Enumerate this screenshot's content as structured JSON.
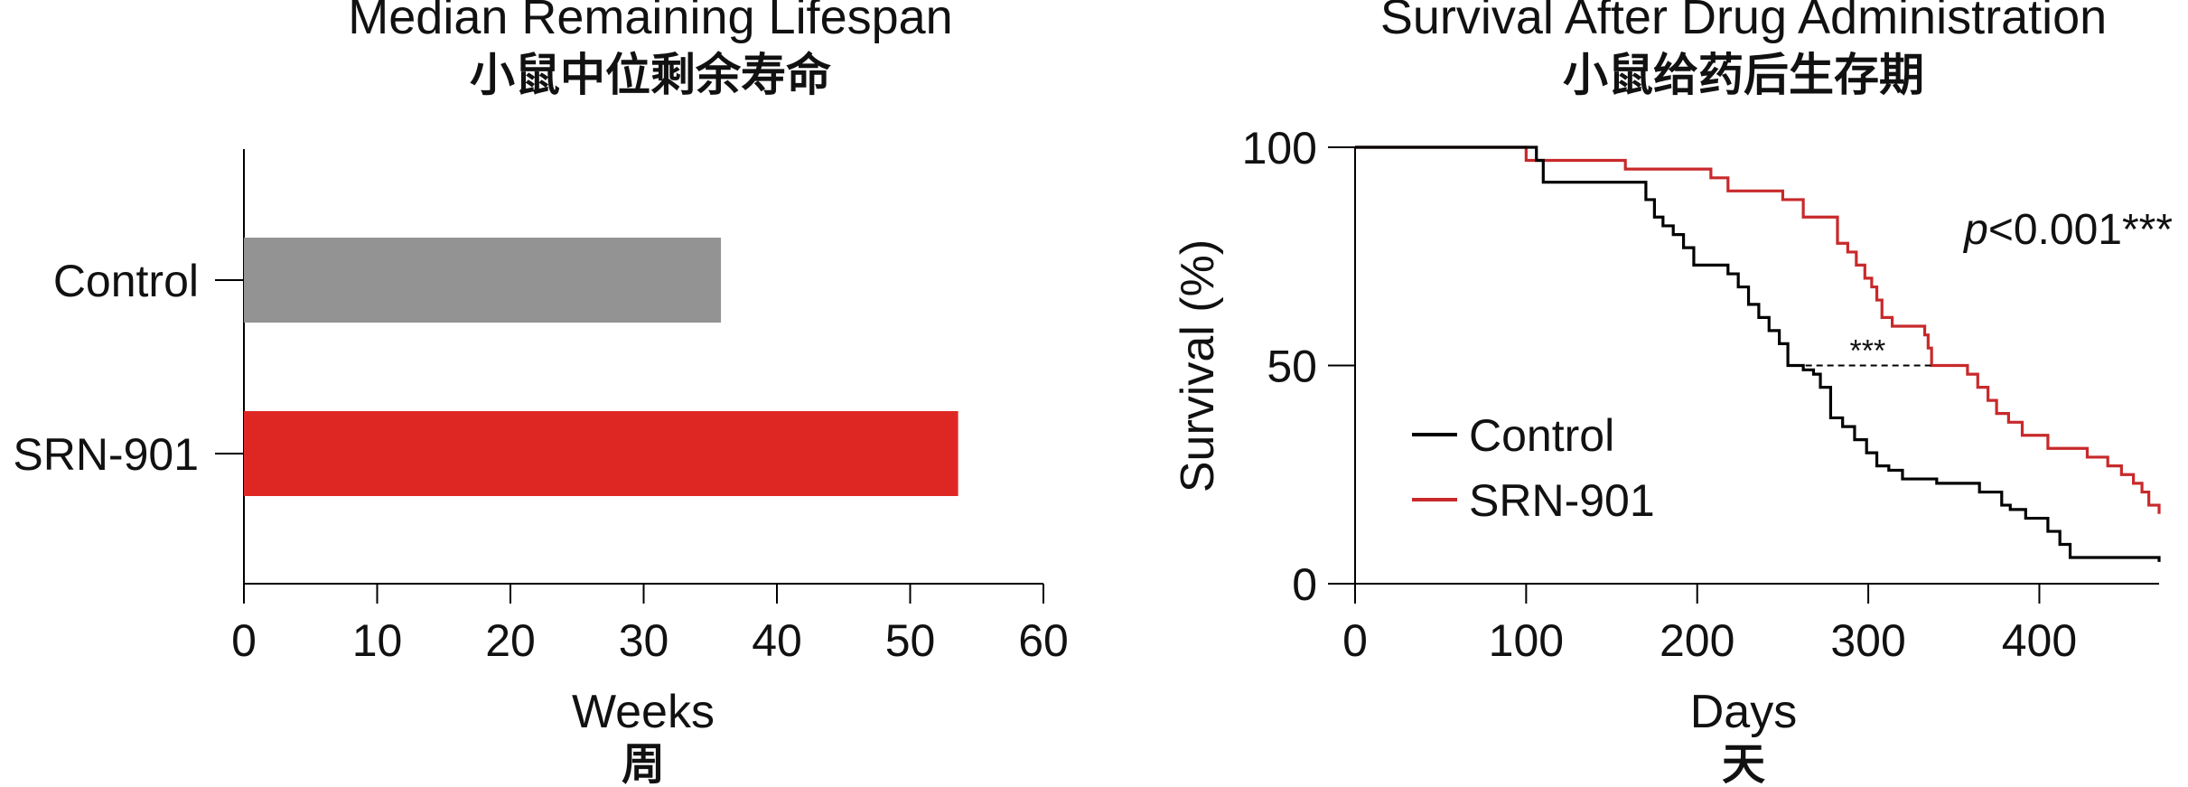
{
  "chart_data": [
    {
      "type": "bar",
      "orientation": "horizontal",
      "title": "Median Remaining Lifespan",
      "subtitle": "小鼠中位剩余寿命",
      "categories": [
        "Control",
        "SRN-901"
      ],
      "values": [
        35.8,
        53.6
      ],
      "colors": [
        "#939393",
        "#de2723"
      ],
      "xlabel": "Weeks",
      "xlabel_sub": "周",
      "xlim": [
        0,
        60
      ],
      "xticks": [
        0,
        10,
        20,
        30,
        40,
        50,
        60
      ]
    },
    {
      "type": "line",
      "step": true,
      "title": "Survival After Drug Administration",
      "subtitle": "小鼠给药后生存期",
      "xlabel": "Days",
      "xlabel_sub": "天",
      "ylabel": "Survival (%)",
      "xlim": [
        0,
        470
      ],
      "ylim": [
        0,
        100
      ],
      "xticks": [
        0,
        100,
        200,
        300,
        400
      ],
      "yticks": [
        0,
        50,
        100
      ],
      "legend_position": "center-left",
      "annotation": "p<0.001***",
      "median_marker": {
        "label": "***",
        "y": 50,
        "x_start": 257,
        "x_end": 337
      },
      "series": [
        {
          "name": "Control",
          "color": "#000000",
          "x": [
            0,
            102,
            106,
            110,
            165,
            170,
            175,
            180,
            186,
            192,
            198,
            212,
            218,
            224,
            230,
            236,
            242,
            248,
            253,
            262,
            268,
            272,
            278,
            285,
            292,
            299,
            305,
            312,
            320,
            340,
            365,
            378,
            383,
            392,
            405,
            412,
            418,
            470
          ],
          "y": [
            100,
            100,
            97,
            92,
            92,
            88,
            84,
            82,
            80,
            77,
            73,
            73,
            71,
            68,
            64,
            61,
            58,
            55,
            50,
            49,
            48,
            45,
            38,
            36,
            33,
            30,
            27,
            26,
            24,
            23,
            21,
            18,
            17,
            15,
            12,
            9,
            6,
            5
          ]
        },
        {
          "name": "SRN-901",
          "color": "#c8292b",
          "x": [
            0,
            95,
            100,
            152,
            158,
            196,
            208,
            218,
            250,
            262,
            282,
            288,
            293,
            298,
            302,
            305,
            308,
            314,
            333,
            335,
            337,
            346,
            358,
            364,
            370,
            375,
            382,
            390,
            405,
            428,
            440,
            448,
            455,
            460,
            464,
            470
          ],
          "y": [
            100,
            100,
            97,
            97,
            95,
            95,
            93,
            90,
            88,
            84,
            78,
            76,
            73,
            70,
            68,
            65,
            61,
            59,
            57,
            54,
            50,
            50,
            48,
            45,
            42,
            39,
            37,
            34,
            31,
            29,
            27,
            25,
            23,
            21,
            18,
            16
          ]
        }
      ]
    }
  ]
}
